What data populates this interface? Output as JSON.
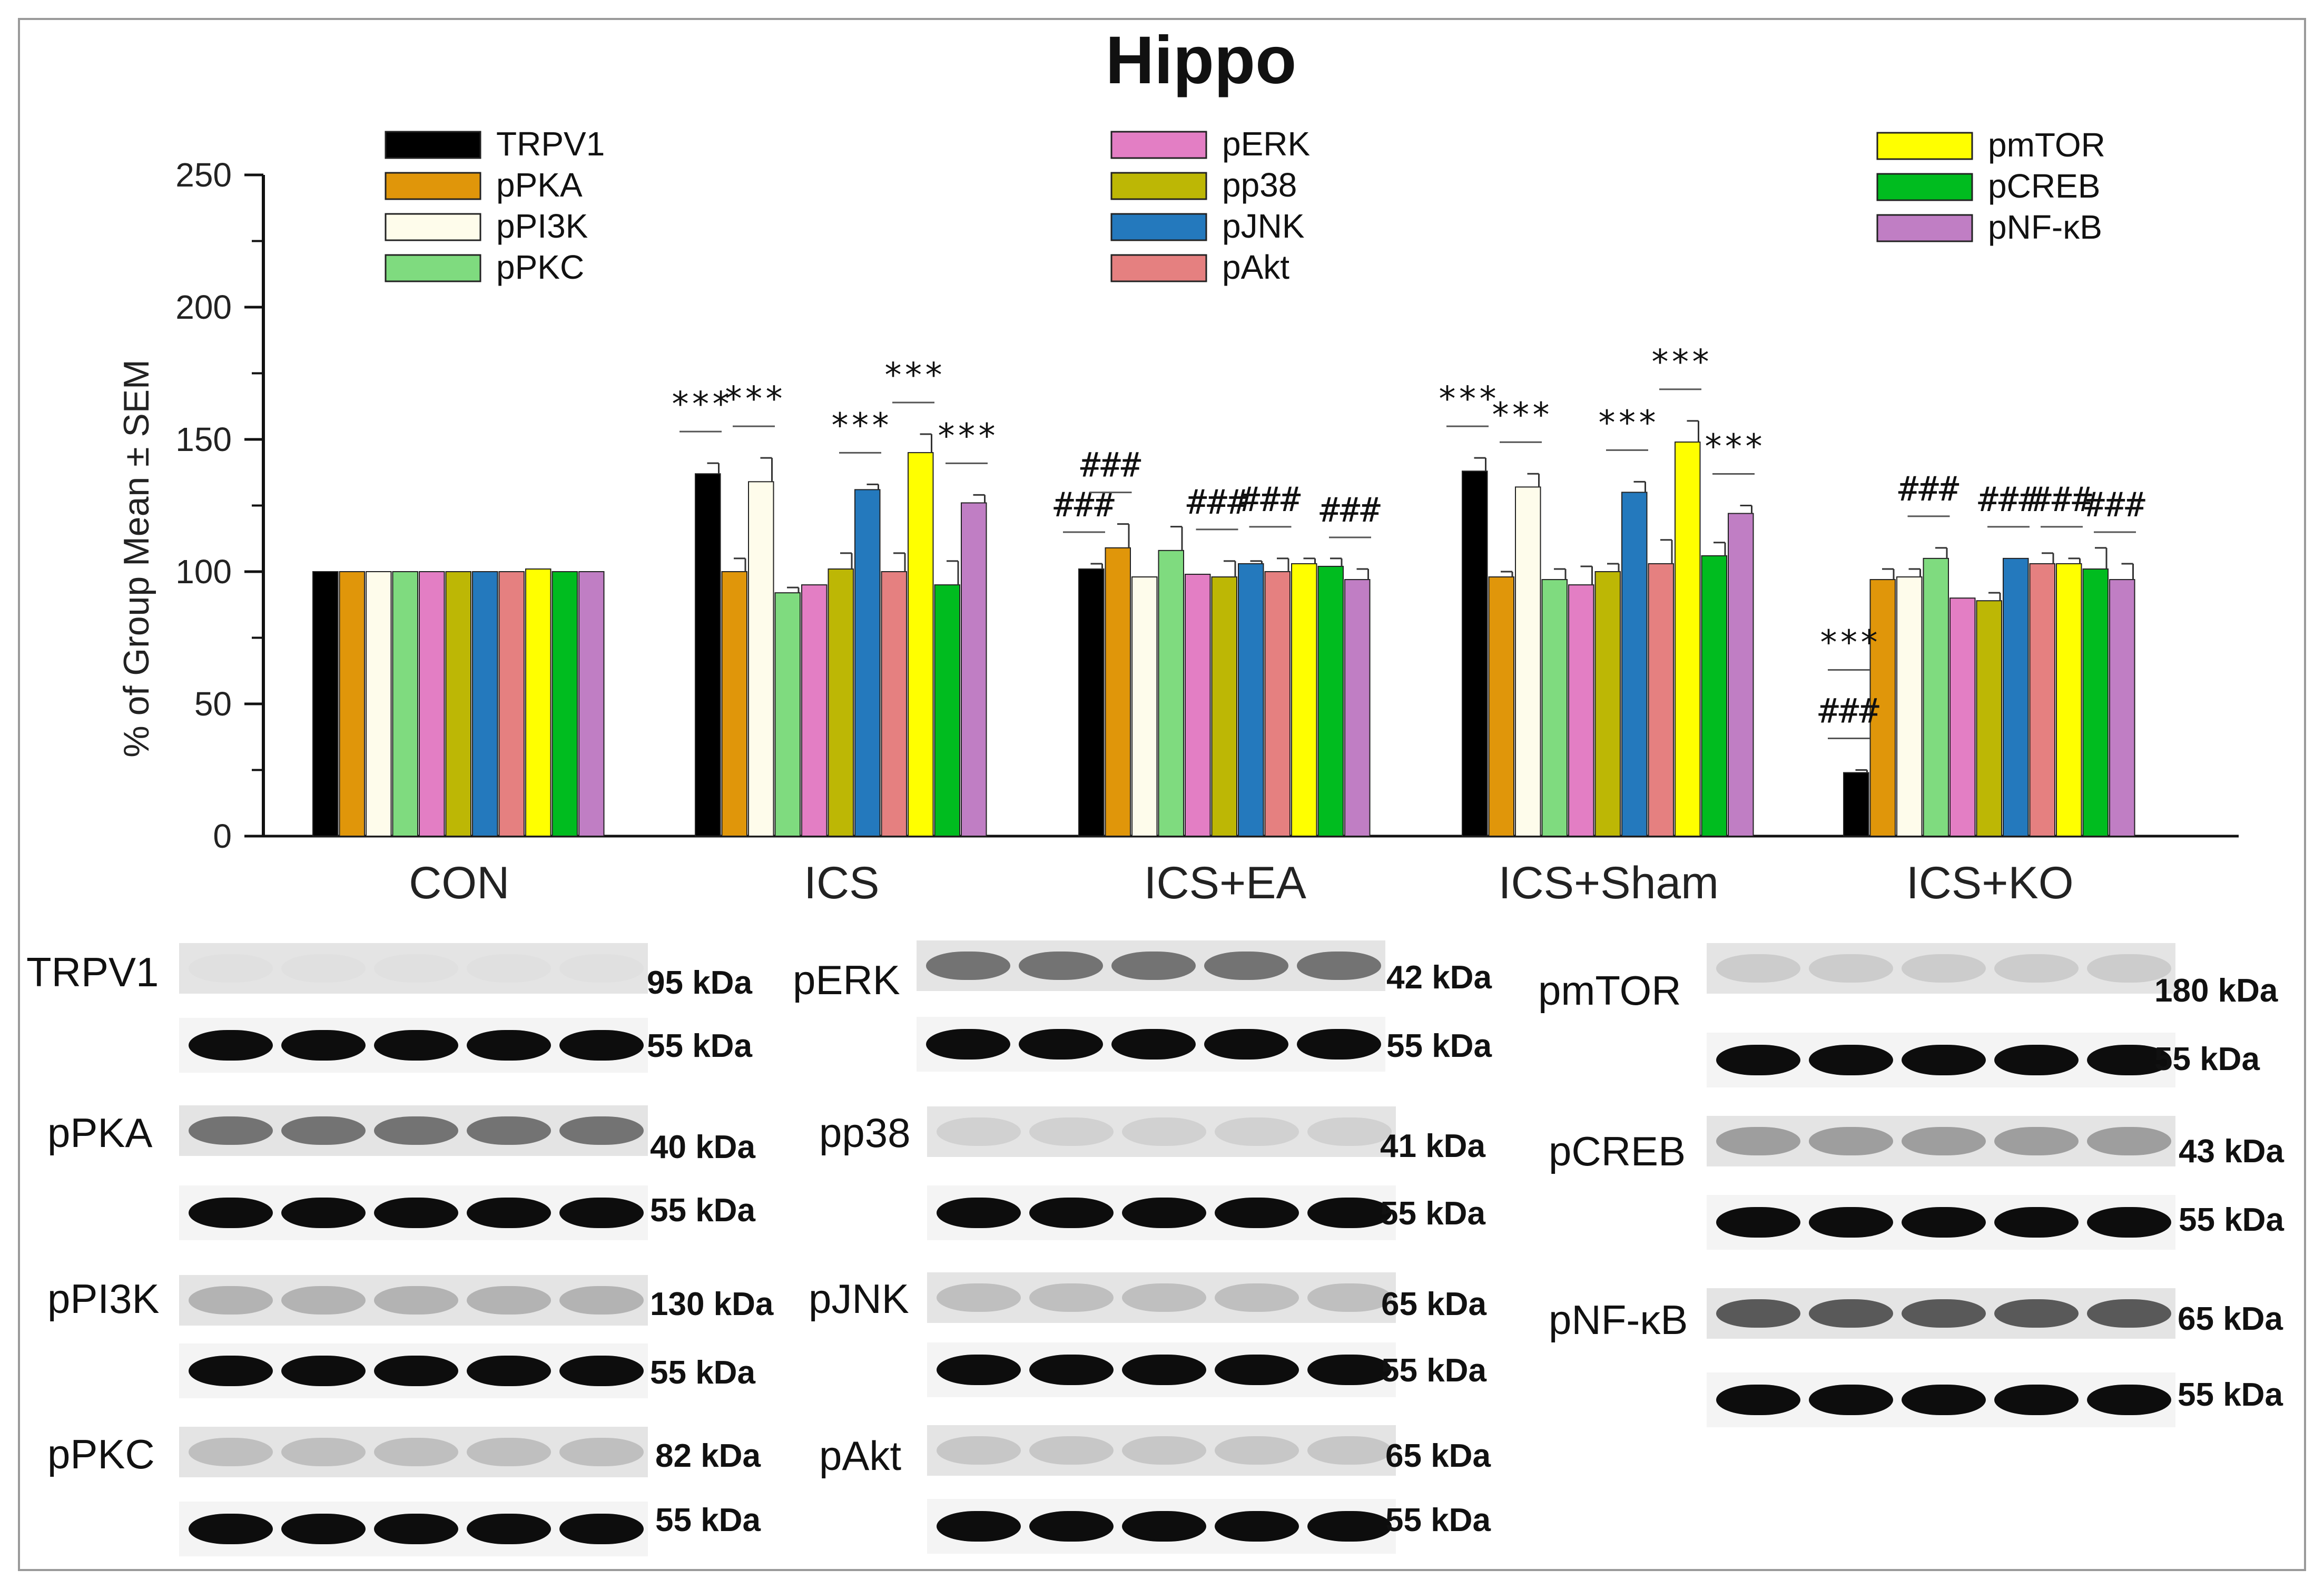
{
  "chart_data": {
    "type": "bar",
    "title": "Hippo",
    "ylabel": "% of Group Mean ± SEM",
    "xlabel": "",
    "ylim": [
      0,
      250
    ],
    "yticks": [
      0,
      50,
      100,
      150,
      200,
      250
    ],
    "categories": [
      "CON",
      "ICS",
      "ICS+EA",
      "ICS+Sham",
      "ICS+KO"
    ],
    "series": [
      {
        "name": "TRPV1",
        "color": "#000000",
        "values": [
          100,
          137,
          101,
          138,
          24
        ],
        "errors": [
          0,
          4,
          2,
          5,
          1
        ],
        "annotations": [
          "",
          "***",
          "###",
          "***",
          "###|***"
        ]
      },
      {
        "name": "pPKA",
        "color": "#E0960A",
        "values": [
          100,
          100,
          109,
          98,
          97
        ],
        "errors": [
          0,
          5,
          9,
          2,
          4
        ],
        "annotations": [
          "",
          "",
          "###",
          "",
          ""
        ]
      },
      {
        "name": "pPI3K",
        "color": "#FEFCEB",
        "values": [
          100,
          134,
          98,
          132,
          98
        ],
        "errors": [
          0,
          9,
          0,
          5,
          3
        ],
        "annotations": [
          "",
          "***",
          "",
          "***",
          ""
        ]
      },
      {
        "name": "pPKC",
        "color": "#7FDB7F",
        "values": [
          100,
          92,
          108,
          97,
          105
        ],
        "errors": [
          0,
          2,
          9,
          4,
          4
        ],
        "annotations": [
          "",
          "",
          "",
          "",
          "###"
        ]
      },
      {
        "name": "pERK",
        "color": "#E37EC4",
        "values": [
          100,
          95,
          99,
          95,
          90
        ],
        "errors": [
          0,
          0,
          0,
          7,
          0
        ],
        "annotations": [
          "",
          "",
          "",
          "",
          ""
        ]
      },
      {
        "name": "pp38",
        "color": "#BDB705",
        "values": [
          100,
          101,
          98,
          100,
          89
        ],
        "errors": [
          0,
          6,
          6,
          3,
          3
        ],
        "annotations": [
          "",
          "",
          "###",
          "",
          ""
        ]
      },
      {
        "name": "pJNK",
        "color": "#2479BD",
        "values": [
          100,
          131,
          103,
          130,
          105
        ],
        "errors": [
          0,
          2,
          1,
          4,
          0
        ],
        "annotations": [
          "",
          "***",
          "",
          "***",
          "###"
        ]
      },
      {
        "name": "pAkt",
        "color": "#E58080",
        "values": [
          100,
          100,
          100,
          103,
          103
        ],
        "errors": [
          0,
          7,
          5,
          9,
          4
        ],
        "annotations": [
          "",
          "",
          "###",
          "",
          ""
        ]
      },
      {
        "name": "pmTOR",
        "color": "#FFFF00",
        "values": [
          101,
          145,
          103,
          149,
          103
        ],
        "errors": [
          0,
          7,
          2,
          8,
          2
        ],
        "annotations": [
          "",
          "***",
          "",
          "***",
          "###"
        ]
      },
      {
        "name": "pCREB",
        "color": "#00BC1F",
        "values": [
          100,
          95,
          102,
          106,
          101
        ],
        "errors": [
          0,
          9,
          3,
          5,
          8
        ],
        "annotations": [
          "",
          "",
          "",
          "",
          ""
        ]
      },
      {
        "name": "pNF-κB",
        "color": "#C07EC4",
        "values": [
          100,
          126,
          97,
          122,
          97
        ],
        "errors": [
          0,
          3,
          4,
          3,
          6
        ],
        "annotations": [
          "",
          "***",
          "###",
          "***",
          "###"
        ]
      }
    ],
    "legend_placement": "top, three columns"
  },
  "blots": [
    {
      "protein": "TRPV1",
      "kda": "95 kDa",
      "loading_kda": "55 kDa"
    },
    {
      "protein": "pPKA",
      "kda": "40 kDa",
      "loading_kda": "55 kDa"
    },
    {
      "protein": "pPI3K",
      "kda": "130 kDa",
      "loading_kda": "55 kDa"
    },
    {
      "protein": "pPKC",
      "kda": "82 kDa",
      "loading_kda": "55 kDa"
    },
    {
      "protein": "pERK",
      "kda": "42 kDa",
      "loading_kda": "55 kDa"
    },
    {
      "protein": "pp38",
      "kda": "41 kDa",
      "loading_kda": "55 kDa"
    },
    {
      "protein": "pJNK",
      "kda": "65 kDa",
      "loading_kda": "55 kDa"
    },
    {
      "protein": "pAkt",
      "kda": "65 kDa",
      "loading_kda": "55 kDa"
    },
    {
      "protein": "pmTOR",
      "kda": "180 kDa",
      "loading_kda": "55 kDa"
    },
    {
      "protein": "pCREB",
      "kda": "43 kDa",
      "loading_kda": "55 kDa"
    },
    {
      "protein": "pNF-κB",
      "kda": "65 kDa",
      "loading_kda": "55 kDa"
    }
  ]
}
